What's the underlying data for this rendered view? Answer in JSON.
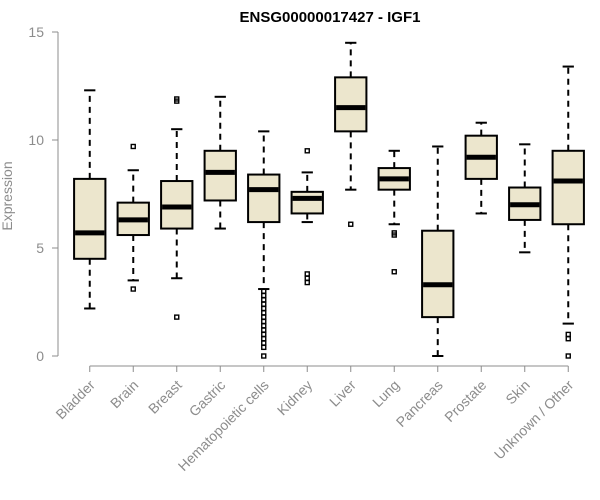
{
  "chart_data": {
    "type": "boxplot",
    "title": "ENSG00000017427 - IGF1",
    "xlabel": "",
    "ylabel": "Expression",
    "ylim": [
      0,
      15
    ],
    "yticks": [
      0,
      5,
      10,
      15
    ],
    "box_color": "#ece6cd",
    "categories": [
      "Bladder",
      "Brain",
      "Breast",
      "Gastric",
      "Hematopoietic cells",
      "Kidney",
      "Liver",
      "Lung",
      "Pancreas",
      "Prostate",
      "Skin",
      "Unknown / Other"
    ],
    "boxes": [
      {
        "name": "Bladder",
        "whisker_low": 2.2,
        "q1": 4.5,
        "median": 5.7,
        "q3": 8.2,
        "whisker_high": 12.3,
        "outliers": []
      },
      {
        "name": "Brain",
        "whisker_low": 3.5,
        "q1": 5.6,
        "median": 6.3,
        "q3": 7.1,
        "whisker_high": 8.6,
        "outliers": [
          9.7,
          3.1
        ]
      },
      {
        "name": "Breast",
        "whisker_low": 3.6,
        "q1": 5.9,
        "median": 6.9,
        "q3": 8.1,
        "whisker_high": 10.5,
        "outliers": [
          11.8,
          11.9,
          1.8
        ]
      },
      {
        "name": "Gastric",
        "whisker_low": 5.9,
        "q1": 7.2,
        "median": 8.5,
        "q3": 9.5,
        "whisker_high": 12.0,
        "outliers": []
      },
      {
        "name": "Hematopoietic cells",
        "whisker_low": 3.1,
        "q1": 6.2,
        "median": 7.7,
        "q3": 8.4,
        "whisker_high": 10.4,
        "outliers": [
          3.0,
          2.8,
          2.6,
          2.4,
          2.2,
          2.0,
          1.8,
          1.6,
          1.4,
          1.2,
          1.0,
          0.8,
          0.6,
          0.4,
          0.0
        ]
      },
      {
        "name": "Kidney",
        "whisker_low": 6.2,
        "q1": 6.6,
        "median": 7.3,
        "q3": 7.6,
        "whisker_high": 8.5,
        "outliers": [
          9.5,
          3.8,
          3.6,
          3.4
        ]
      },
      {
        "name": "Liver",
        "whisker_low": 7.7,
        "q1": 10.4,
        "median": 11.5,
        "q3": 12.9,
        "whisker_high": 14.5,
        "outliers": [
          6.1
        ]
      },
      {
        "name": "Lung",
        "whisker_low": 6.1,
        "q1": 7.7,
        "median": 8.2,
        "q3": 8.7,
        "whisker_high": 9.5,
        "outliers": [
          5.6,
          5.7,
          3.9
        ]
      },
      {
        "name": "Pancreas",
        "whisker_low": 0.0,
        "q1": 1.8,
        "median": 3.3,
        "q3": 5.8,
        "whisker_high": 9.7,
        "outliers": []
      },
      {
        "name": "Prostate",
        "whisker_low": 6.6,
        "q1": 8.2,
        "median": 9.2,
        "q3": 10.2,
        "whisker_high": 10.8,
        "outliers": []
      },
      {
        "name": "Skin",
        "whisker_low": 4.8,
        "q1": 6.3,
        "median": 7.0,
        "q3": 7.8,
        "whisker_high": 9.8,
        "outliers": []
      },
      {
        "name": "Unknown / Other",
        "whisker_low": 1.5,
        "q1": 6.1,
        "median": 8.1,
        "q3": 9.5,
        "whisker_high": 13.4,
        "outliers": [
          1.0,
          0.8,
          0.0
        ]
      }
    ]
  }
}
